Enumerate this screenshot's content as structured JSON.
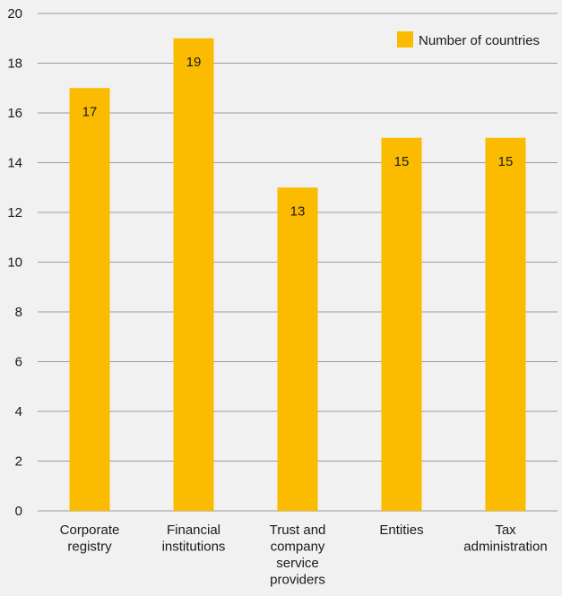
{
  "chart_data": {
    "type": "bar",
    "categories": [
      [
        "Corporate",
        "registry"
      ],
      [
        "Financial",
        "institutions"
      ],
      [
        "Trust and",
        "company",
        "service",
        "providers"
      ],
      [
        "Entities"
      ],
      [
        "Tax",
        "administration"
      ]
    ],
    "series": [
      {
        "name": "Number of countries",
        "values": [
          17,
          19,
          13,
          15,
          15
        ]
      }
    ],
    "data_labels": [
      "17",
      "19",
      "13",
      "15",
      "15"
    ],
    "ylim": [
      0,
      20
    ],
    "yticks": [
      0,
      2,
      4,
      6,
      8,
      10,
      12,
      14,
      16,
      18,
      20
    ],
    "grid": true,
    "legend_position": "top-right",
    "colors": {
      "bar": "#fbbb00",
      "grid": "#9b9b9b",
      "background": "#f1f1f1",
      "text": "#1a1a1a"
    }
  }
}
